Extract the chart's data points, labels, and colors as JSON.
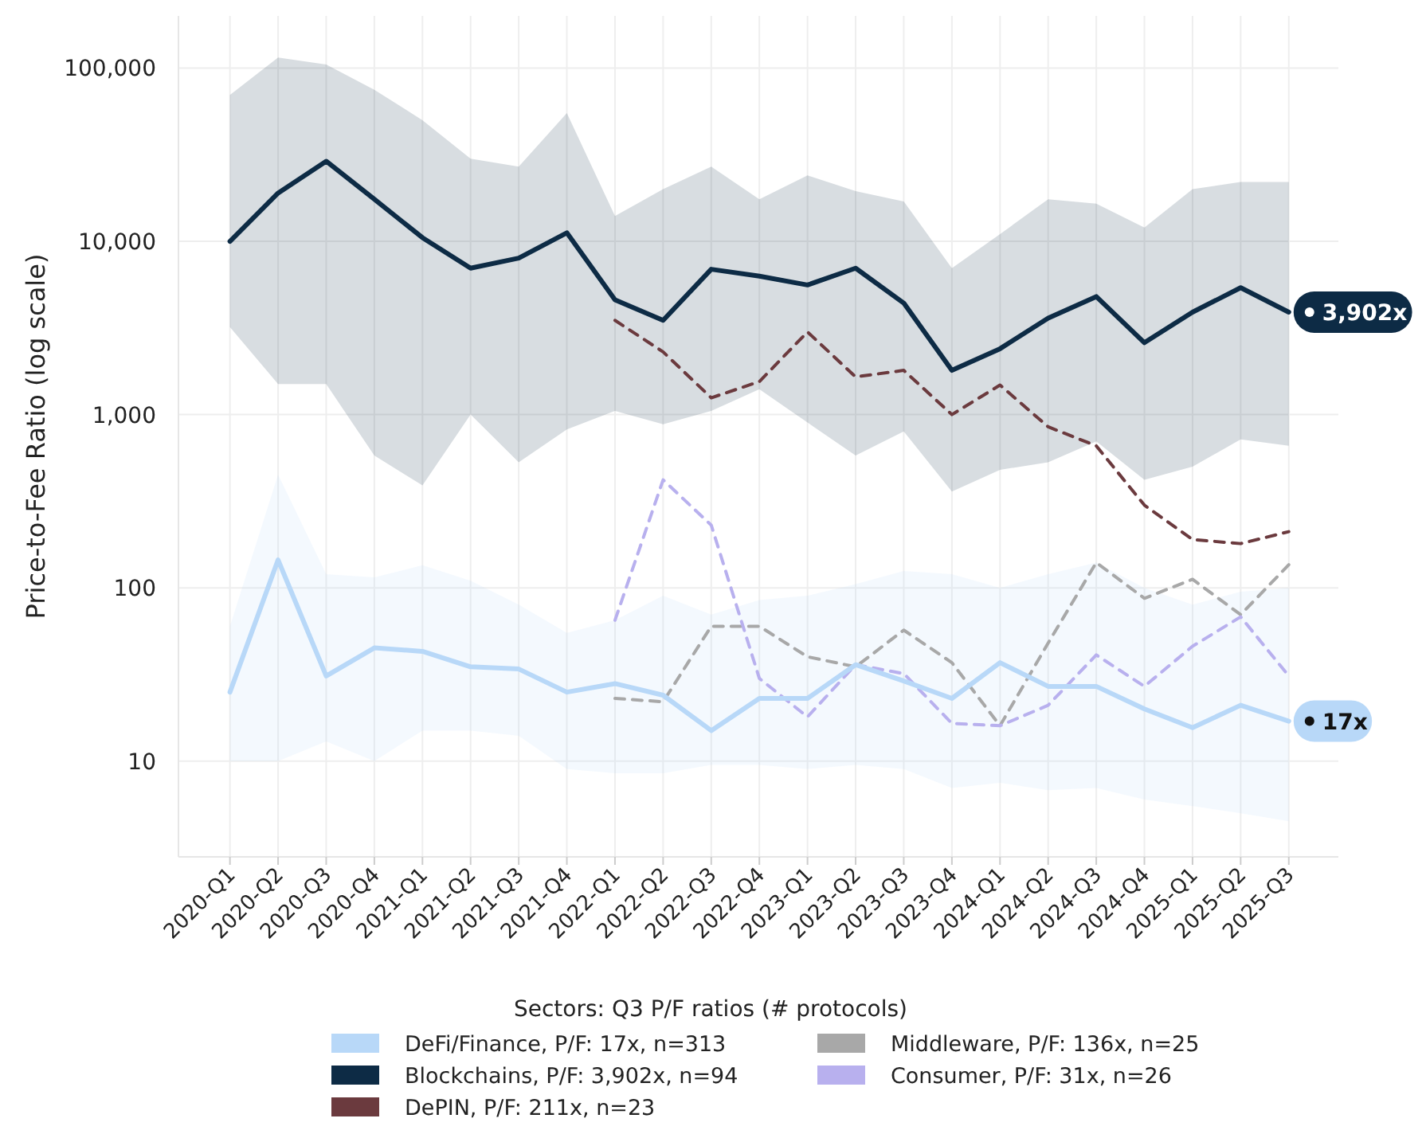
{
  "chart_data": {
    "type": "line",
    "ylabel": "Price-to-Fee Ratio (log scale)",
    "legend_title": "Sectors: Q3 P/F ratios (# protocols)",
    "log": "y",
    "grid": true,
    "legend": "bottom",
    "categories": [
      "2020-Q1",
      "2020-Q2",
      "2020-Q3",
      "2020-Q4",
      "2021-Q1",
      "2021-Q2",
      "2021-Q3",
      "2021-Q4",
      "2022-Q1",
      "2022-Q2",
      "2022-Q3",
      "2022-Q4",
      "2023-Q1",
      "2023-Q2",
      "2023-Q3",
      "2023-Q4",
      "2024-Q1",
      "2024-Q2",
      "2024-Q3",
      "2024-Q4",
      "2025-Q1",
      "2025-Q2",
      "2025-Q3"
    ],
    "ylim": [
      2.8,
      200000
    ],
    "yticks": [
      {
        "value": 10,
        "label": "10"
      },
      {
        "value": 100,
        "label": "100"
      },
      {
        "value": 1000,
        "label": "1,000"
      },
      {
        "value": 10000,
        "label": "10,000"
      },
      {
        "value": 100000,
        "label": "100,000"
      }
    ],
    "series": [
      {
        "name": "DeFi/Finance, P/F: 17x, n=313",
        "color": "#b8d8f8",
        "line_style": "solid",
        "values": [
          25,
          145,
          31,
          45,
          43,
          35,
          34,
          25,
          28,
          24,
          15,
          23,
          23,
          36,
          29,
          23,
          37,
          27,
          27,
          20,
          15.6,
          21,
          17
        ],
        "upper": [
          60,
          450,
          120,
          115,
          135,
          110,
          80,
          55,
          65,
          90,
          70,
          85,
          90,
          105,
          125,
          120,
          100,
          120,
          140,
          100,
          80,
          95,
          100
        ],
        "lower": [
          10,
          10,
          13,
          10,
          15,
          15,
          14,
          9,
          8.5,
          8.5,
          9.5,
          9.5,
          9,
          9.5,
          9,
          7,
          7.5,
          6.8,
          7,
          6,
          5.5,
          5,
          4.5
        ]
      },
      {
        "name": "Blockchains, P/F: 3,902x, n=94",
        "color": "#0d2b45",
        "line_style": "solid",
        "values": [
          10000,
          19000,
          29000,
          17500,
          10500,
          7000,
          8000,
          11200,
          4600,
          3500,
          6900,
          6300,
          5600,
          7000,
          4400,
          1800,
          2400,
          3600,
          4800,
          2600,
          3900,
          5400,
          3902
        ],
        "upper": [
          70000,
          115000,
          105000,
          75000,
          50000,
          30000,
          27000,
          55000,
          14000,
          20000,
          27000,
          17500,
          24000,
          19500,
          17000,
          7000,
          11000,
          17500,
          16500,
          12000,
          20000,
          22000,
          22000
        ],
        "lower": [
          3200,
          1500,
          1500,
          580,
          390,
          1000,
          530,
          820,
          1050,
          880,
          1050,
          1400,
          900,
          580,
          800,
          360,
          480,
          530,
          700,
          420,
          500,
          720,
          660
        ]
      },
      {
        "name": "DePIN, P/F: 211x, n=23",
        "color": "#6b3a3e",
        "line_style": "dashed",
        "values": [
          null,
          null,
          null,
          null,
          null,
          null,
          null,
          null,
          3500,
          2300,
          1250,
          1550,
          3000,
          1650,
          1800,
          1000,
          1480,
          850,
          660,
          300,
          190,
          180,
          211
        ]
      },
      {
        "name": "Middleware, P/F: 136x, n=25",
        "color": "#a8a8a8",
        "line_style": "dashed",
        "values": [
          null,
          null,
          null,
          null,
          null,
          null,
          null,
          null,
          23,
          22,
          60,
          60,
          40,
          35,
          57,
          37,
          16,
          48,
          140,
          87,
          112,
          70,
          136
        ]
      },
      {
        "name": "Consumer, P/F: 31x, n=26",
        "color": "#b8b0ee",
        "line_style": "dashed",
        "values": [
          null,
          null,
          null,
          null,
          null,
          null,
          null,
          null,
          65,
          420,
          230,
          30,
          18,
          36,
          32,
          16.5,
          16,
          21,
          41,
          27,
          46,
          68,
          31
        ]
      }
    ],
    "annotations": [
      {
        "text": "3,902x",
        "x": "2025-Q3",
        "y": 3902
      },
      {
        "text": "17x",
        "x": "2025-Q3",
        "y": 17
      }
    ]
  }
}
